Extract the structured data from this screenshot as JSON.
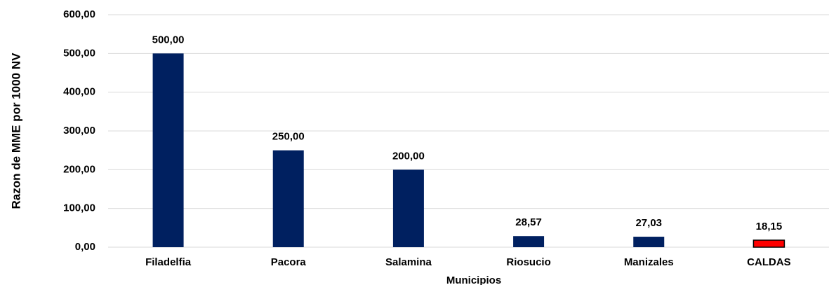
{
  "chart_data": {
    "type": "bar",
    "x_label": "Municipios",
    "y_label": "Razon de MME por 1000 NV",
    "categories": [
      "Filadelfia",
      "Pacora",
      "Salamina",
      "Riosucio",
      "Manizales",
      "CALDAS"
    ],
    "values": [
      500,
      250,
      200,
      28.57,
      27.03,
      18.15
    ],
    "value_labels": [
      "500,00",
      "250,00",
      "200,00",
      "28,57",
      "27,03",
      "18,15"
    ],
    "colors": [
      "#002060",
      "#002060",
      "#002060",
      "#002060",
      "#002060",
      "#ff0000"
    ],
    "ylim": [
      0,
      600
    ],
    "yticks": [
      {
        "value": 0,
        "label": "0,00"
      },
      {
        "value": 100,
        "label": "100,00"
      },
      {
        "value": 200,
        "label": "200,00"
      },
      {
        "value": 300,
        "label": "300,00"
      },
      {
        "value": 400,
        "label": "400,00"
      },
      {
        "value": 500,
        "label": "500,00"
      },
      {
        "value": 600,
        "label": "600,00"
      }
    ],
    "grid": true
  }
}
